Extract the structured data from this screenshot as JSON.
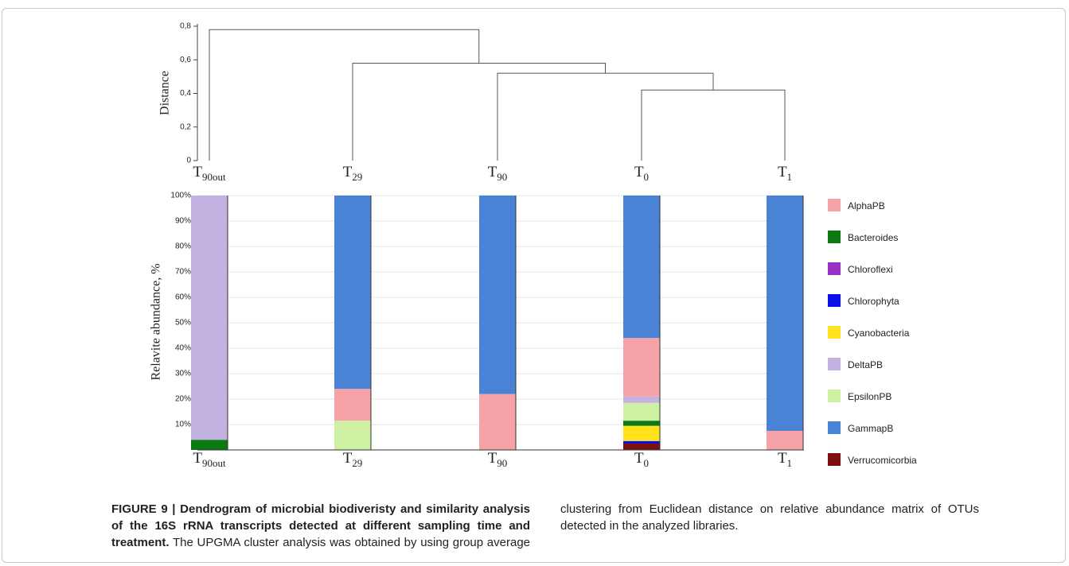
{
  "chart_data": [
    {
      "type": "dendrogram",
      "y_label": "Distance",
      "leaves": [
        "T90out",
        "T29",
        "T90",
        "T0",
        "T1"
      ],
      "merges": [
        {
          "children": [
            3,
            4
          ],
          "height": 0.42
        },
        {
          "children": [
            2,
            5
          ],
          "height": 0.52
        },
        {
          "children": [
            1,
            6
          ],
          "height": 0.58
        },
        {
          "children": [
            0,
            7
          ],
          "height": 0.78
        }
      ],
      "ylim": [
        0,
        0.8
      ],
      "yticks": [
        0,
        {
          "value": 0.2,
          "label": "0,2"
        },
        {
          "value": 0.4,
          "label": "0,4"
        },
        {
          "value": 0.6,
          "label": "0,6"
        },
        {
          "value": 0.8,
          "label": "0,8"
        }
      ]
    },
    {
      "type": "stacked_bar",
      "y_label": "Relavite abundance, %",
      "categories": [
        "T90out",
        "T29",
        "T90",
        "T0",
        "T1"
      ],
      "series": [
        {
          "name": "AlphaPB",
          "color": "#f5a3a7",
          "values": [
            0,
            12.5,
            22,
            23,
            7.5
          ]
        },
        {
          "name": "Bacteroides",
          "color": "#0b7a12",
          "values": [
            4,
            0,
            0,
            2,
            0
          ]
        },
        {
          "name": "Chloroflexi",
          "color": "#9a2fc4",
          "values": [
            0,
            0,
            0,
            0,
            0
          ]
        },
        {
          "name": "Chlorophyta",
          "color": "#0a10e8",
          "values": [
            0,
            0,
            0,
            1,
            0
          ]
        },
        {
          "name": "Cyanobacteria",
          "color": "#ffe21c",
          "values": [
            0,
            0,
            0,
            6,
            0
          ]
        },
        {
          "name": "DeltaPB",
          "color": "#c2b2e2",
          "values": [
            96,
            0,
            0,
            2.5,
            0
          ]
        },
        {
          "name": "EpsilonPB",
          "color": "#cdf0a2",
          "values": [
            0,
            11.5,
            0,
            7,
            0
          ]
        },
        {
          "name": "GammapB",
          "color": "#4a82d6",
          "values": [
            0,
            76,
            78,
            56,
            92.5
          ]
        },
        {
          "name": "Verrucomicorbia",
          "color": "#7c1010",
          "values": [
            0,
            0,
            0,
            2.5,
            0
          ]
        }
      ],
      "ylim": [
        0,
        100
      ],
      "yticks": [
        {
          "value": 10,
          "label": "10%"
        },
        {
          "value": 20,
          "label": "20%"
        },
        {
          "value": 30,
          "label": "30%"
        },
        {
          "value": 40,
          "label": "40%"
        },
        {
          "value": 50,
          "label": "50%"
        },
        {
          "value": 60,
          "label": "60%"
        },
        {
          "value": 70,
          "label": "70%"
        },
        {
          "value": 80,
          "label": "80%"
        },
        {
          "value": 90,
          "label": "90%"
        },
        {
          "value": 100,
          "label": "100%"
        }
      ],
      "grid": true,
      "legend": "right"
    }
  ],
  "caption": {
    "label": "FIGURE 9 | Dendrogram of microbial biodiveristy and similarity analysis of the 16S rRNA transcripts detected at different sampling time and treatment.",
    "text": "The UPGMA cluster analysis was obtained by using group average clustering from Euclidean distance on relative abundance matrix of OTUs detected in the analyzed libraries."
  }
}
